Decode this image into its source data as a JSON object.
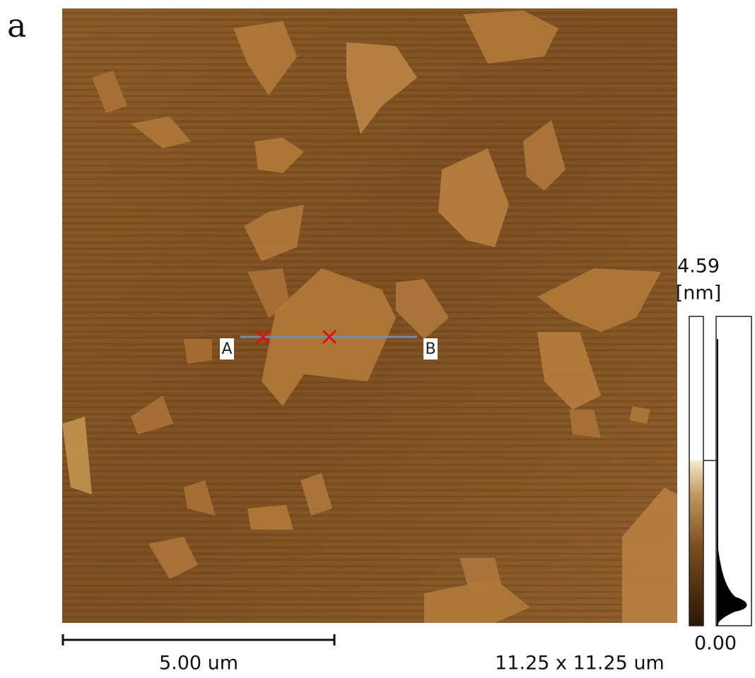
{
  "panel_label": "a",
  "profile": {
    "start_label": "A",
    "end_label": "B"
  },
  "color_scale": {
    "max": "4.59",
    "unit": "[nm]",
    "min": "0.00"
  },
  "scale_bar": {
    "label": "5.00 um"
  },
  "scan_size": "11.25 x 11.25 um"
}
